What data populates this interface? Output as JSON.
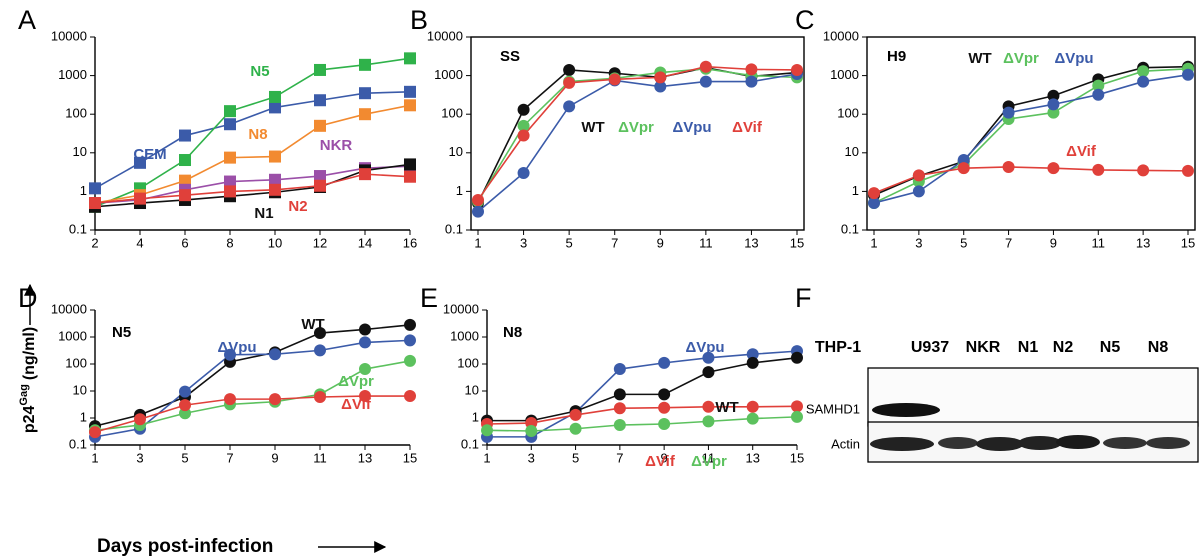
{
  "chart_data": [
    {
      "panel": "A",
      "type": "line",
      "marker": "square",
      "log": true,
      "frame": false,
      "x": [
        2,
        4,
        6,
        8,
        10,
        12,
        14,
        16
      ],
      "xlim": [
        2,
        16
      ],
      "xticks": [
        2,
        4,
        6,
        8,
        10,
        12,
        14,
        16
      ],
      "ylim": [
        0.1,
        10000
      ],
      "yticks": [
        0.1,
        1,
        10,
        100,
        1000,
        10000
      ],
      "series": [
        {
          "name": "CEM",
          "color": "#3b5ba9",
          "values": [
            1.2,
            5.5,
            28,
            55,
            150,
            230,
            350,
            380
          ]
        },
        {
          "name": "N5",
          "color": "#2fb24a",
          "values": [
            0.4,
            1.2,
            6.5,
            120,
            280,
            1400,
            1900,
            2800
          ]
        },
        {
          "name": "N8",
          "color": "#f28a30",
          "values": [
            0.5,
            0.8,
            1.9,
            7.5,
            8,
            50,
            100,
            170
          ]
        },
        {
          "name": "NKR",
          "color": "#9b4fa8",
          "values": [
            0.5,
            0.6,
            1.1,
            1.8,
            2.0,
            2.5,
            4,
            4.5
          ]
        },
        {
          "name": "N1",
          "color": "#111111",
          "values": [
            0.4,
            0.5,
            0.6,
            0.75,
            0.95,
            1.3,
            3.5,
            5
          ]
        },
        {
          "name": "N2",
          "color": "#e0403a",
          "values": [
            0.5,
            0.65,
            0.8,
            1,
            1.1,
            1.4,
            2.8,
            2.4
          ]
        }
      ]
    },
    {
      "panel": "B",
      "title": "SS",
      "type": "line",
      "marker": "circle",
      "log": true,
      "frame": true,
      "x": [
        1,
        3,
        5,
        7,
        9,
        11,
        13,
        15
      ],
      "xlim": [
        1,
        15
      ],
      "xticks": [
        1,
        3,
        5,
        7,
        9,
        11,
        13,
        15
      ],
      "ylim": [
        0.1,
        10000
      ],
      "yticks": [
        0.1,
        1,
        10,
        100,
        1000,
        10000
      ],
      "series": [
        {
          "name": "WT",
          "color": "#111111",
          "values": [
            0.5,
            130,
            1400,
            1150,
            900,
            1600,
            950,
            1200
          ]
        },
        {
          "name": "ΔVpr",
          "color": "#5cc15e",
          "values": [
            0.55,
            50,
            700,
            850,
            1200,
            1500,
            1000,
            900
          ]
        },
        {
          "name": "ΔVpu",
          "color": "#3b5ba9",
          "values": [
            0.3,
            3,
            160,
            750,
            520,
            700,
            700,
            1100
          ]
        },
        {
          "name": "ΔVif",
          "color": "#e0403a",
          "values": [
            0.6,
            28,
            650,
            800,
            900,
            1700,
            1450,
            1400
          ]
        }
      ]
    },
    {
      "panel": "C",
      "title": "H9",
      "type": "line",
      "marker": "circle",
      "log": true,
      "frame": true,
      "x": [
        1,
        3,
        5,
        7,
        9,
        11,
        13,
        15
      ],
      "xlim": [
        1,
        15
      ],
      "xticks": [
        1,
        3,
        5,
        7,
        9,
        11,
        13,
        15
      ],
      "ylim": [
        0.1,
        10000
      ],
      "yticks": [
        0.1,
        1,
        10,
        100,
        1000,
        10000
      ],
      "series": [
        {
          "name": "WT",
          "color": "#111111",
          "values": [
            0.8,
            2.5,
            6,
            160,
            300,
            800,
            1600,
            1700
          ]
        },
        {
          "name": "ΔVpr",
          "color": "#5cc15e",
          "values": [
            0.5,
            1.8,
            5,
            75,
            110,
            550,
            1300,
            1500
          ]
        },
        {
          "name": "ΔVpu",
          "color": "#3b5ba9",
          "values": [
            0.5,
            1.0,
            6.5,
            110,
            180,
            320,
            700,
            1050
          ]
        },
        {
          "name": "ΔVif",
          "color": "#e0403a",
          "values": [
            0.9,
            2.6,
            4.0,
            4.3,
            4.0,
            3.6,
            3.5,
            3.4
          ]
        }
      ]
    },
    {
      "panel": "D",
      "title": "N5",
      "type": "line",
      "marker": "circle",
      "log": true,
      "frame": false,
      "x": [
        1,
        3,
        5,
        7,
        9,
        11,
        13,
        15
      ],
      "xlim": [
        1,
        15
      ],
      "xticks": [
        1,
        3,
        5,
        7,
        9,
        11,
        13,
        15
      ],
      "ylim": [
        0.1,
        10000
      ],
      "yticks": [
        0.1,
        1,
        10,
        100,
        1000,
        10000
      ],
      "series": [
        {
          "name": "WT",
          "color": "#111111",
          "values": [
            0.5,
            1.3,
            6,
            120,
            270,
            1400,
            1900,
            2800
          ]
        },
        {
          "name": "ΔVpu",
          "color": "#3b5ba9",
          "values": [
            0.2,
            0.4,
            9.5,
            220,
            230,
            320,
            630,
            750
          ]
        },
        {
          "name": "ΔVpr",
          "color": "#5cc15e",
          "values": [
            0.35,
            0.55,
            1.5,
            3.2,
            4,
            7.5,
            65,
            130
          ]
        },
        {
          "name": "ΔVif",
          "color": "#e0403a",
          "values": [
            0.3,
            0.9,
            3,
            5,
            5,
            6,
            6.5,
            6.5
          ]
        }
      ]
    },
    {
      "panel": "E",
      "title": "N8",
      "type": "line",
      "marker": "circle",
      "log": true,
      "frame": false,
      "x": [
        1,
        3,
        5,
        7,
        9,
        11,
        13,
        15
      ],
      "xlim": [
        1,
        15
      ],
      "xticks": [
        1,
        3,
        5,
        7,
        9,
        11,
        13,
        15
      ],
      "ylim": [
        0.1,
        10000
      ],
      "yticks": [
        0.1,
        1,
        10,
        100,
        1000,
        10000
      ],
      "series": [
        {
          "name": "ΔVpu",
          "color": "#3b5ba9",
          "values": [
            0.2,
            0.2,
            1.6,
            65,
            110,
            170,
            230,
            300
          ]
        },
        {
          "name": "WT",
          "color": "#111111",
          "values": [
            0.8,
            0.8,
            1.8,
            7.5,
            7.5,
            50,
            110,
            170
          ]
        },
        {
          "name": "ΔVif",
          "color": "#e0403a",
          "values": [
            0.6,
            0.65,
            1.3,
            2.3,
            2.4,
            2.6,
            2.6,
            2.7
          ]
        },
        {
          "name": "ΔVpr",
          "color": "#5cc15e",
          "values": [
            0.35,
            0.33,
            0.4,
            0.55,
            0.6,
            0.75,
            0.95,
            1.1
          ]
        }
      ]
    }
  ],
  "y_axis_label": {
    "main": "p24",
    "sup": "Gag",
    "unit": "(ng/ml)"
  },
  "x_axis_label": "Days post-infection",
  "blot": {
    "panel": "F",
    "lanes": [
      "THP-1",
      "U937",
      "NKR",
      "N1",
      "N2",
      "N5",
      "N8"
    ],
    "rows": [
      "SAMHD1",
      "Actin"
    ]
  }
}
